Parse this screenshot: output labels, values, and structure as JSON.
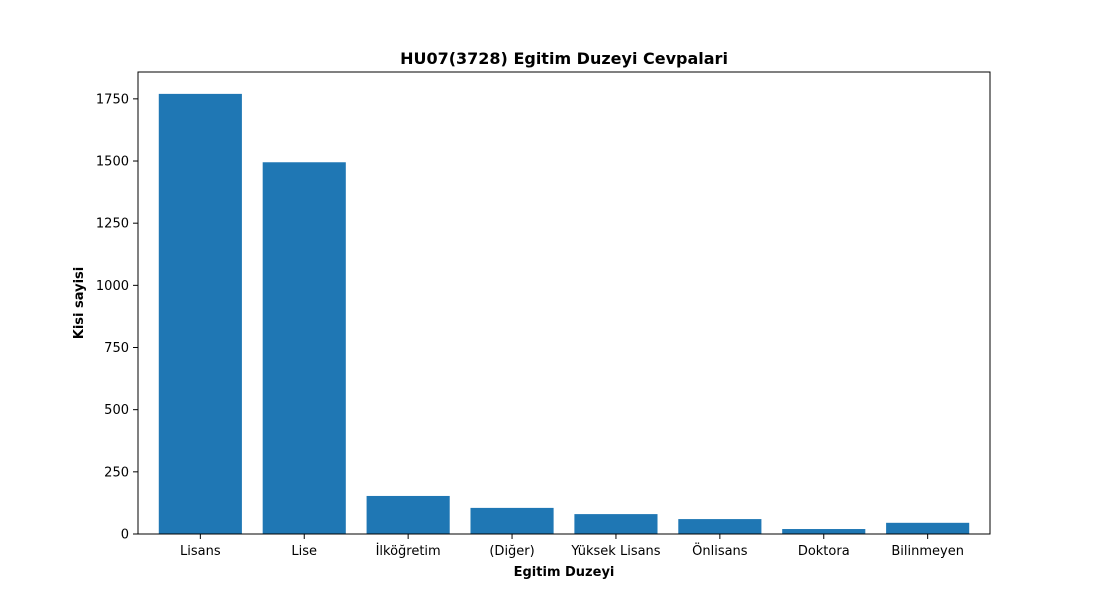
{
  "chart_data": {
    "type": "bar",
    "title": "HU07(3728) Egitim Duzeyi Cevpalari",
    "xlabel": "Egitim Duzeyi",
    "ylabel": "Kisi sayisi",
    "categories": [
      "Lisans",
      "Lise",
      "İlköğretim",
      "(Diğer)",
      "Yüksek Lisans",
      "Önlisans",
      "Doktora",
      "Bilinmeyen"
    ],
    "values": [
      1770,
      1495,
      153,
      105,
      80,
      60,
      20,
      45
    ],
    "ylim": [
      0,
      1858
    ],
    "yticks": [
      0,
      250,
      500,
      750,
      1000,
      1250,
      1500,
      1750
    ],
    "grid": false,
    "bar_color": "#1f77b4"
  }
}
